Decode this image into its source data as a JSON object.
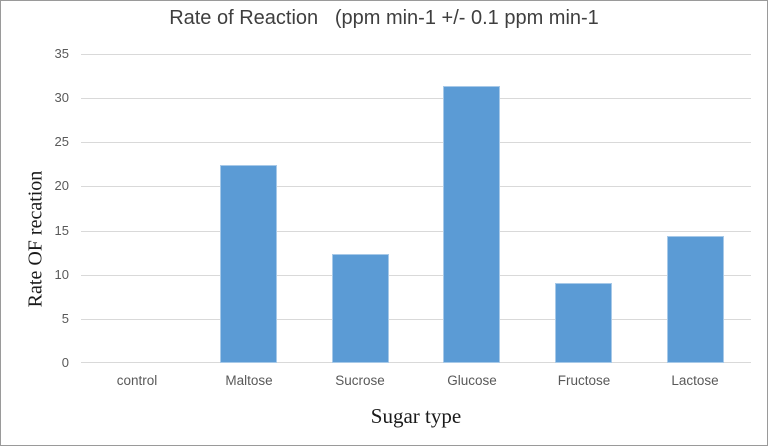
{
  "chart_data": {
    "type": "bar",
    "title": "Rate of Reaction   (ppm min-1 +/- 0.1 ppm min-1",
    "xlabel": "Sugar type",
    "ylabel": "Rate OF recation",
    "categories": [
      "control",
      "Maltose",
      "Sucrose",
      "Glucose",
      "Fructose",
      "Lactose"
    ],
    "values": [
      0,
      22.4,
      12.4,
      31.4,
      9.1,
      14.4
    ],
    "ylim": [
      0,
      35
    ],
    "yticks": [
      0,
      5,
      10,
      15,
      20,
      25,
      30,
      35
    ],
    "grid": true,
    "legend": "none",
    "colors": {
      "bar_fill": "#5b9bd5",
      "bar_border": "#a7c9e8",
      "gridline": "#d9d9d9",
      "tick_text": "#595959",
      "title_text": "#3f3f3f"
    }
  }
}
